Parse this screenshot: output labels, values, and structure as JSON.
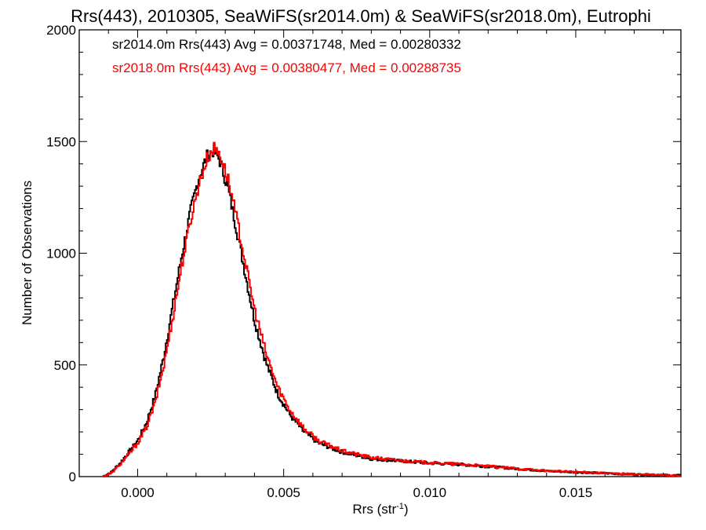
{
  "chart_data": {
    "type": "histogram",
    "title": "Rrs(443), 2010305, SeaWiFS(sr2014.0m) & SeaWiFS(sr2018.0m), Eutrophi",
    "xlabel": "Rrs (str",
    "xlabel_sup": "-1",
    "xlabel_close": ")",
    "ylabel": "Number of Observations",
    "xlim": [
      -0.002,
      0.0186
    ],
    "ylim": [
      0,
      2000
    ],
    "xticks": [
      0.0,
      0.005,
      0.01,
      0.015
    ],
    "xtick_labels": [
      "0.000",
      "0.005",
      "0.010",
      "0.015"
    ],
    "yticks": [
      0,
      500,
      1000,
      1500,
      2000
    ],
    "ytick_labels": [
      "0",
      "500",
      "1000",
      "1500",
      "2000"
    ],
    "grid": false,
    "series": [
      {
        "color": "#000000",
        "stats_label": "sr2014.0m Rrs(443) Avg = 0.00371748, Med = 0.00280332",
        "points": [
          [
            -0.0012,
            0
          ],
          [
            -0.0009,
            20
          ],
          [
            -0.0006,
            60
          ],
          [
            -0.0003,
            110
          ],
          [
            0.0,
            160
          ],
          [
            0.0003,
            240
          ],
          [
            0.0006,
            360
          ],
          [
            0.0009,
            540
          ],
          [
            0.0012,
            760
          ],
          [
            0.0015,
            980
          ],
          [
            0.0018,
            1180
          ],
          [
            0.0021,
            1340
          ],
          [
            0.0024,
            1440
          ],
          [
            0.0026,
            1460
          ],
          [
            0.0028,
            1420
          ],
          [
            0.0031,
            1290
          ],
          [
            0.0034,
            1100
          ],
          [
            0.0037,
            900
          ],
          [
            0.004,
            700
          ],
          [
            0.0044,
            510
          ],
          [
            0.0048,
            370
          ],
          [
            0.0052,
            280
          ],
          [
            0.0057,
            200
          ],
          [
            0.0062,
            150
          ],
          [
            0.007,
            110
          ],
          [
            0.008,
            80
          ],
          [
            0.009,
            70
          ],
          [
            0.01,
            60
          ],
          [
            0.011,
            55
          ],
          [
            0.012,
            45
          ],
          [
            0.013,
            35
          ],
          [
            0.014,
            25
          ],
          [
            0.015,
            20
          ],
          [
            0.016,
            15
          ],
          [
            0.017,
            10
          ],
          [
            0.0186,
            5
          ]
        ]
      },
      {
        "color": "#ff0000",
        "stats_label": "sr2018.0m Rrs(443) Avg = 0.00380477, Med = 0.00288735",
        "points": [
          [
            -0.0012,
            0
          ],
          [
            -0.0009,
            15
          ],
          [
            -0.0006,
            55
          ],
          [
            -0.0003,
            100
          ],
          [
            0.0,
            150
          ],
          [
            0.0003,
            220
          ],
          [
            0.0006,
            330
          ],
          [
            0.0009,
            500
          ],
          [
            0.0012,
            710
          ],
          [
            0.0015,
            940
          ],
          [
            0.0018,
            1140
          ],
          [
            0.0021,
            1310
          ],
          [
            0.0024,
            1430
          ],
          [
            0.0026,
            1470
          ],
          [
            0.0028,
            1450
          ],
          [
            0.0031,
            1330
          ],
          [
            0.0034,
            1150
          ],
          [
            0.0037,
            950
          ],
          [
            0.004,
            750
          ],
          [
            0.0044,
            550
          ],
          [
            0.0048,
            400
          ],
          [
            0.0052,
            300
          ],
          [
            0.0057,
            215
          ],
          [
            0.0062,
            160
          ],
          [
            0.007,
            115
          ],
          [
            0.008,
            85
          ],
          [
            0.009,
            72
          ],
          [
            0.01,
            62
          ],
          [
            0.011,
            56
          ],
          [
            0.012,
            46
          ],
          [
            0.013,
            36
          ],
          [
            0.014,
            26
          ],
          [
            0.015,
            21
          ],
          [
            0.016,
            15
          ],
          [
            0.017,
            10
          ],
          [
            0.0186,
            5
          ]
        ]
      }
    ]
  }
}
